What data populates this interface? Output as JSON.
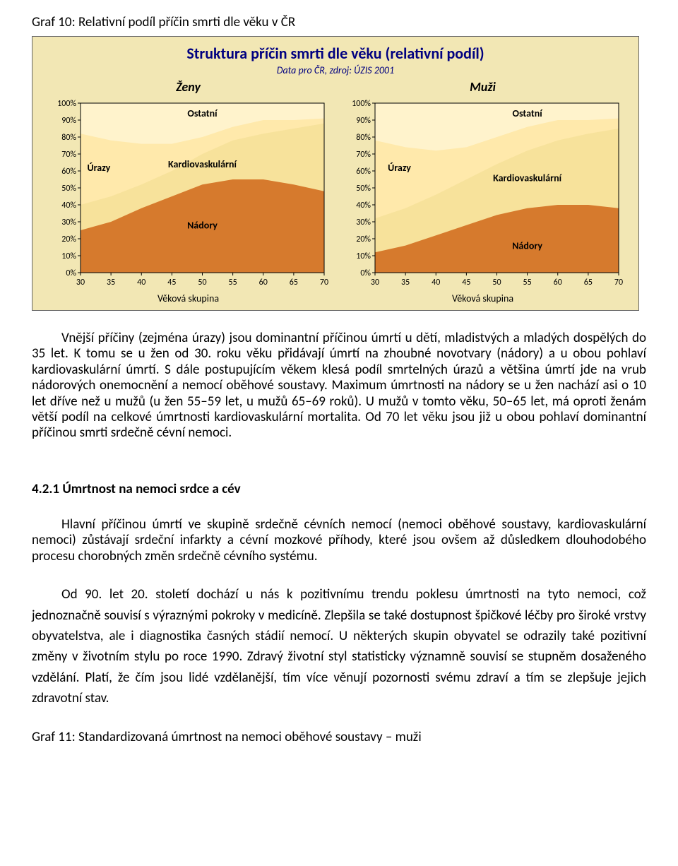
{
  "caption_top": "Graf 10: Relativní podíl příčin smrti dle věku v ČR",
  "figure": {
    "title": "Struktura příčin smrti dle věku (relativní podíl)",
    "subtitle": "Data pro ČR, zdroj: ÚZIS 2001",
    "background": "#f2e7b4",
    "title_color": "#000080",
    "x_axis_title": "Věková skupina",
    "x_ticks": [
      30,
      35,
      40,
      45,
      50,
      55,
      60,
      65,
      70
    ],
    "y_ticks": [
      0,
      10,
      20,
      30,
      40,
      50,
      60,
      70,
      80,
      90,
      100
    ],
    "colors": {
      "nadory": "#d67a2d",
      "kardio": "#f7e29b",
      "urazy": "#ffe9ab",
      "ostatni": "#fff3cc",
      "grid": "#b7a86e",
      "axis": "#000000",
      "tick_text": "#000000",
      "series_label": "#000000"
    },
    "panels": [
      {
        "label": "Ženy",
        "series_labels": {
          "nadory": "Nádory",
          "kardio": "Kardiovaskulární",
          "urazy": "Úrazy",
          "ostatni": "Ostatní"
        },
        "nadory_top": [
          25,
          30,
          38,
          45,
          52,
          55,
          55,
          52,
          48
        ],
        "kardio_top": [
          40,
          45,
          52,
          60,
          70,
          78,
          82,
          85,
          88
        ],
        "urazy_top": [
          82,
          78,
          76,
          76,
          80,
          86,
          90,
          90,
          91
        ],
        "ostatni_top": [
          100,
          100,
          100,
          100,
          100,
          100,
          100,
          100,
          100
        ]
      },
      {
        "label": "Muži",
        "series_labels": {
          "nadory": "Nádory",
          "kardio": "Kardiovaskulární",
          "urazy": "Úrazy",
          "ostatni": "Ostatní"
        },
        "nadory_top": [
          12,
          16,
          22,
          28,
          34,
          38,
          40,
          40,
          38
        ],
        "kardio_top": [
          32,
          38,
          46,
          55,
          64,
          72,
          78,
          82,
          85
        ],
        "urazy_top": [
          78,
          74,
          72,
          74,
          80,
          86,
          90,
          90,
          91
        ],
        "ostatni_top": [
          100,
          100,
          100,
          100,
          100,
          100,
          100,
          100,
          100
        ]
      }
    ]
  },
  "para1": "Vnější příčiny (zejména úrazy) jsou dominantní příčinou úmrtí u dětí, mladistvých a mladých dospělých do 35 let. K tomu se u žen od 30. roku věku přidávají úmrtí na zhoubné novotvary (nádory) a u obou pohlaví kardiovaskulární úmrtí. S dále postupujícím věkem klesá podíl smrtelných úrazů a většina úmrtí jde na vrub nádorových onemocnění a nemocí oběhové soustavy. Maximum úmrtnosti na nádory se u žen nachází asi o 10 let dříve než u mužů (u žen 55–59 let, u mužů 65–69 roků). U mužů v tomto věku, 50–65 let, má oproti ženám větší podíl na celkové úmrtnosti kardiovaskulární mortalita. Od 70 let věku jsou již u obou pohlaví dominantní příčinou smrti srdečně cévní nemoci.",
  "section_heading": "4.2.1 Úmrtnost na nemoci srdce a cév",
  "para2": "Hlavní příčinou úmrtí ve skupině srdečně cévních nemocí (nemoci oběhové soustavy, kardiovaskulární nemoci) zůstávají srdeční infarkty a cévní mozkové příhody, které jsou ovšem až důsledkem dlouhodobého procesu chorobných změn srdečně cévního systému.",
  "para3": "Od 90. let 20. století dochází u nás k pozitivnímu trendu poklesu úmrtnosti na tyto nemoci, což jednoznačně souvisí s výraznými pokroky v medicíně. Zlepšila se také dostupnost špičkové léčby pro široké vrstvy obyvatelstva, ale i diagnostika časných stádií nemocí. U některých skupin obyvatel se odrazily také pozitivní změny v životním stylu po roce 1990. Zdravý životní styl statisticky významně souvisí se stupněm dosaženého vzdělání. Platí, že čím jsou lidé vzdělanější, tím více věnují pozornosti svému zdraví a tím se zlepšuje jejich zdravotní stav.",
  "caption_bottom": "Graf 11: Standardizovaná úmrtnost na nemoci oběhové soustavy – muži"
}
